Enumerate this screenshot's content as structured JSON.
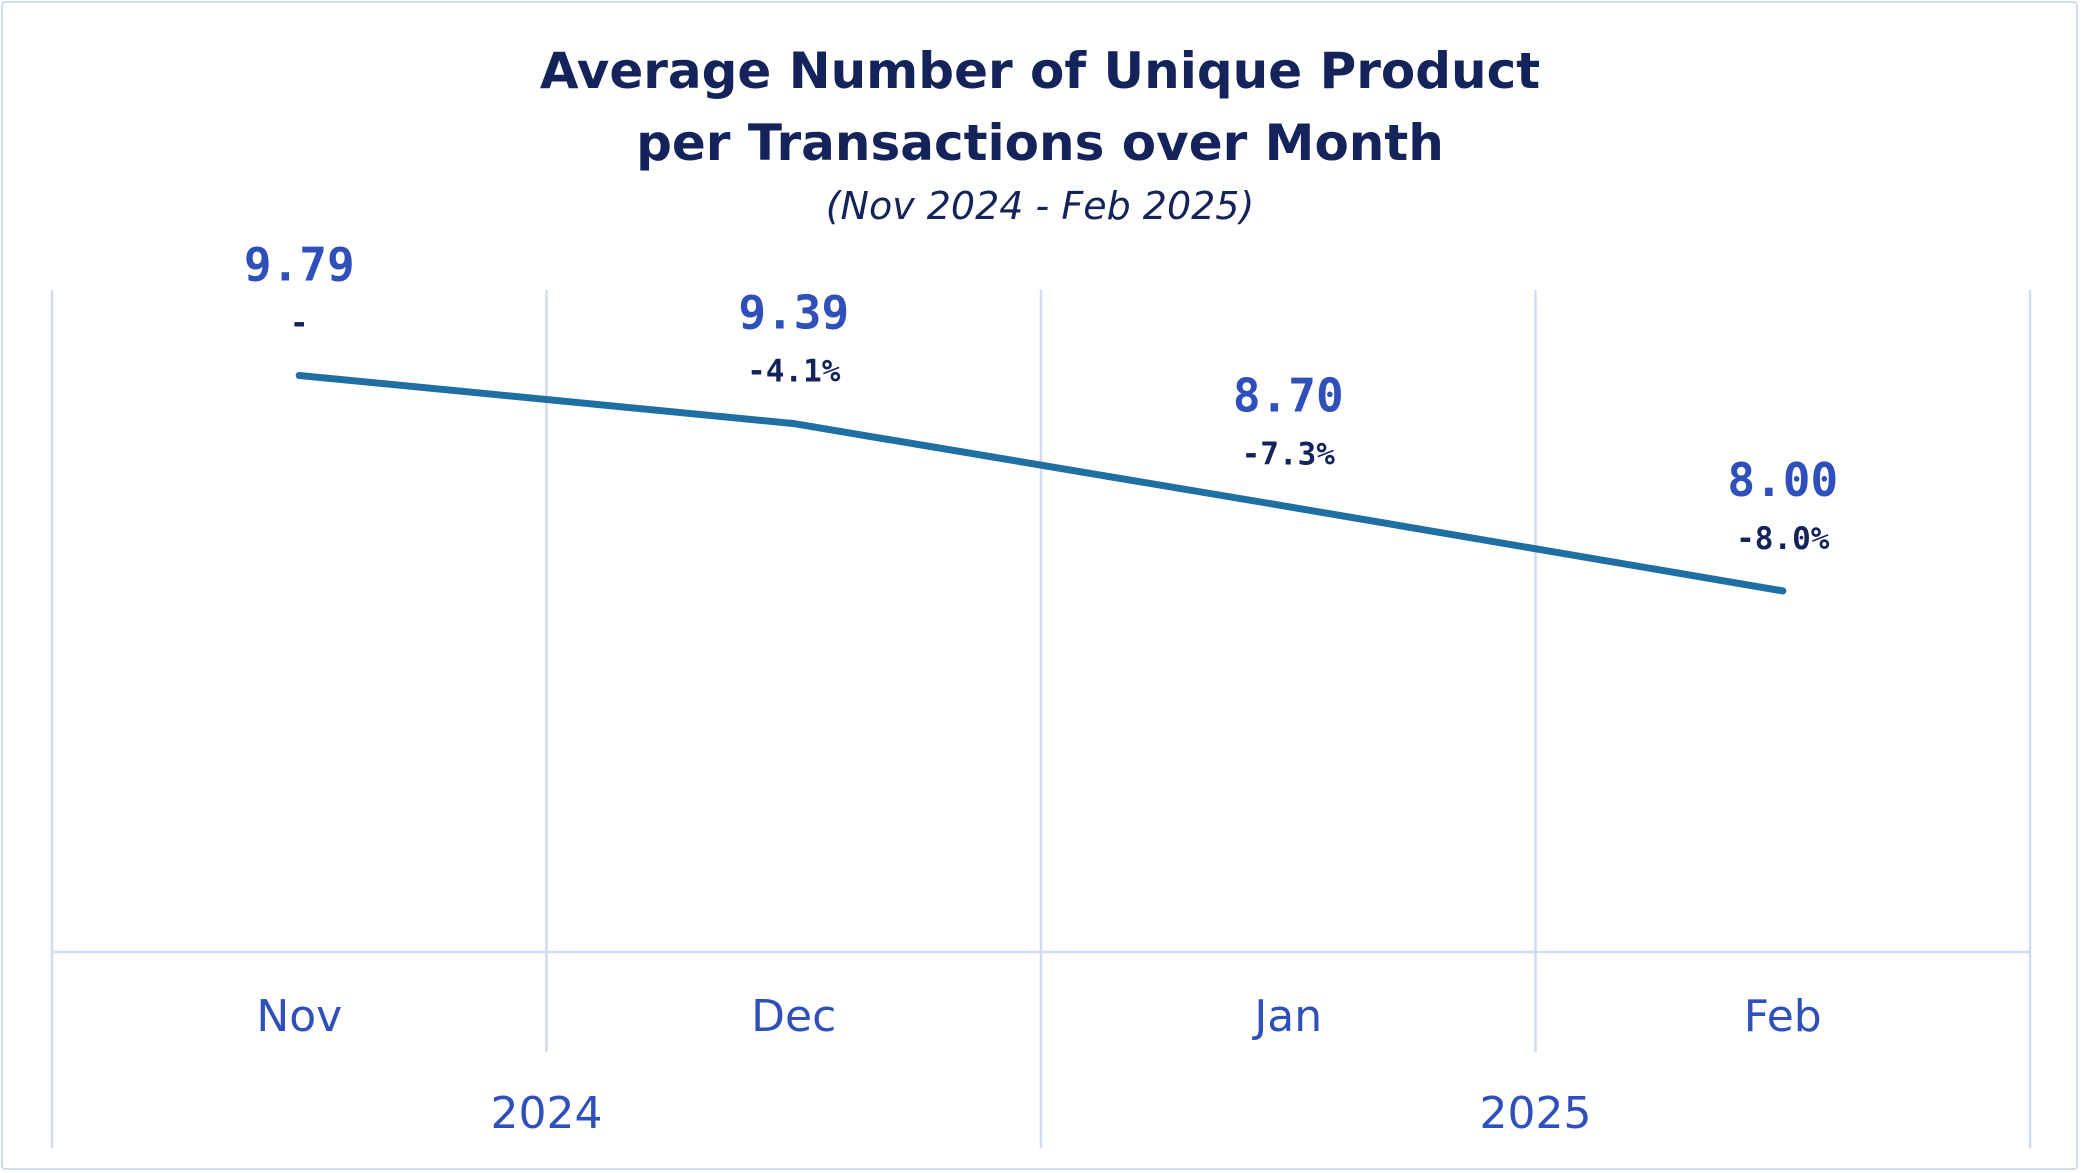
{
  "chart_data": {
    "type": "line",
    "title_line1": "Average Number of Unique Product",
    "title_line2": "per Transactions over Month",
    "subtitle": "(Nov 2024 - Feb 2025)",
    "categories": [
      "Nov",
      "Dec",
      "Jan",
      "Feb"
    ],
    "groups": [
      {
        "label": "2024",
        "categories": [
          "Nov",
          "Dec"
        ]
      },
      {
        "label": "2025",
        "categories": [
          "Jan",
          "Feb"
        ]
      }
    ],
    "series": [
      {
        "values": [
          9.79,
          9.39,
          8.7,
          8.0
        ],
        "value_labels": [
          "9.79",
          "9.39",
          "8.70",
          "8.00"
        ],
        "change_labels": [
          "-",
          "-4.1%",
          "-7.3%",
          "-8.0%"
        ],
        "color": "#1f6fa3"
      }
    ],
    "ylim": [
      5.0,
      10.5
    ],
    "grid": true,
    "colors": {
      "title": "#14235a",
      "value_label": "#2f4fbb",
      "change_label": "#14235a",
      "axis_label": "#2f4fbb",
      "grid": "#d3dcef",
      "line": "#1f6fa3"
    }
  }
}
